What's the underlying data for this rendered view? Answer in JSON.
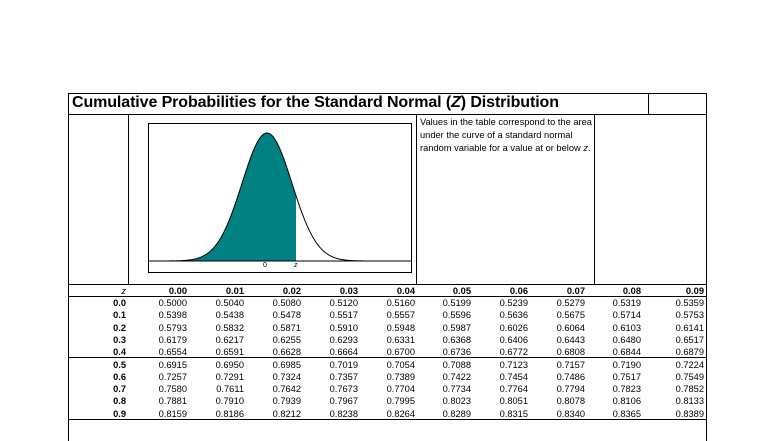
{
  "title": {
    "prefix": "Cumulative Probabilities for the Standard Normal (",
    "z": "Z",
    "suffix": ") Distribution"
  },
  "description": {
    "text": "Values in the table correspond to the area under the curve of a standard normal random variable for a value at or below ",
    "z": "z",
    "end": "."
  },
  "figure": {
    "zero_label": "0",
    "z_label": "z",
    "fill_color": "#008080"
  },
  "table": {
    "corner": "z",
    "columns": [
      "0.00",
      "0.01",
      "0.02",
      "0.03",
      "0.04",
      "0.05",
      "0.06",
      "0.07",
      "0.08",
      "0.09"
    ],
    "rows": [
      {
        "z": "0.0",
        "values": [
          "0.5000",
          "0.5040",
          "0.5080",
          "0.5120",
          "0.5160",
          "0.5199",
          "0.5239",
          "0.5279",
          "0.5319",
          "0.5359"
        ]
      },
      {
        "z": "0.1",
        "values": [
          "0.5398",
          "0.5438",
          "0.5478",
          "0.5517",
          "0.5557",
          "0.5596",
          "0.5636",
          "0.5675",
          "0.5714",
          "0.5753"
        ]
      },
      {
        "z": "0.2",
        "values": [
          "0.5793",
          "0.5832",
          "0.5871",
          "0.5910",
          "0.5948",
          "0.5987",
          "0.6026",
          "0.6064",
          "0.6103",
          "0.6141"
        ]
      },
      {
        "z": "0.3",
        "values": [
          "0.6179",
          "0.6217",
          "0.6255",
          "0.6293",
          "0.6331",
          "0.6368",
          "0.6406",
          "0.6443",
          "0.6480",
          "0.6517"
        ]
      },
      {
        "z": "0.4",
        "values": [
          "0.6554",
          "0.6591",
          "0.6628",
          "0.6664",
          "0.6700",
          "0.6736",
          "0.6772",
          "0.6808",
          "0.6844",
          "0.6879"
        ]
      },
      {
        "z": "0.5",
        "values": [
          "0.6915",
          "0.6950",
          "0.6985",
          "0.7019",
          "0.7054",
          "0.7088",
          "0.7123",
          "0.7157",
          "0.7190",
          "0.7224"
        ]
      },
      {
        "z": "0.6",
        "values": [
          "0.7257",
          "0.7291",
          "0.7324",
          "0.7357",
          "0.7389",
          "0.7422",
          "0.7454",
          "0.7486",
          "0.7517",
          "0.7549"
        ]
      },
      {
        "z": "0.7",
        "values": [
          "0.7580",
          "0.7611",
          "0.7642",
          "0.7673",
          "0.7704",
          "0.7734",
          "0.7764",
          "0.7794",
          "0.7823",
          "0.7852"
        ]
      },
      {
        "z": "0.8",
        "values": [
          "0.7881",
          "0.7910",
          "0.7939",
          "0.7967",
          "0.7995",
          "0.8023",
          "0.8051",
          "0.8078",
          "0.8106",
          "0.8133"
        ]
      },
      {
        "z": "0.9",
        "values": [
          "0.8159",
          "0.8186",
          "0.8212",
          "0.8238",
          "0.8264",
          "0.8289",
          "0.8315",
          "0.8340",
          "0.8365",
          "0.8389"
        ]
      }
    ]
  }
}
